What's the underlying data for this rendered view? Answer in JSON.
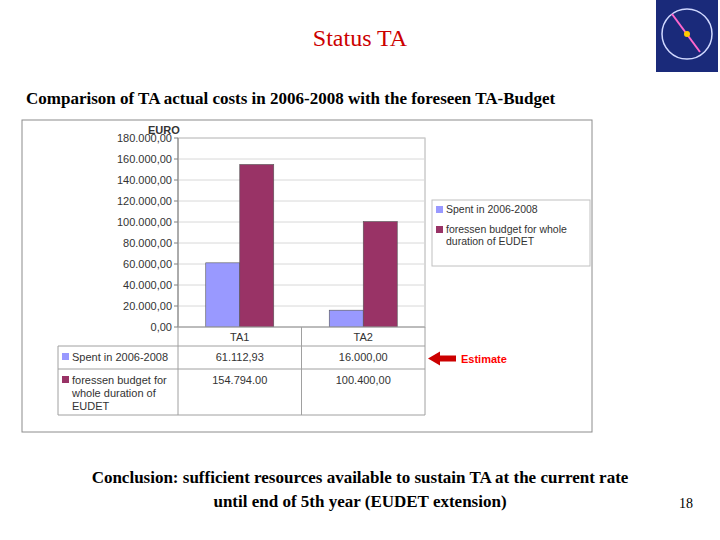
{
  "slide": {
    "title": "Status TA",
    "subtitle": "Comparison of TA actual costs in 2006-2008 with the foreseen TA-Budget",
    "conclusion": [
      "Conclusion: sufficient resources available to sustain TA at the current rate",
      "until end of 5th year (EUDET extension)"
    ],
    "page_number": 18
  },
  "chart_data": {
    "type": "bar",
    "y_label": "EURO",
    "annotations": [
      "Estimate"
    ],
    "categories": [
      "TA1",
      "TA2"
    ],
    "series": [
      {
        "name": "Spent in 2006-2008",
        "color": "#9999ff",
        "values": [
          61112.93,
          16000
        ],
        "value_labels": [
          "61.112,93",
          "16.000,00"
        ]
      },
      {
        "name": "foressen budget for whole duration of EUDET",
        "color": "#993366",
        "values": [
          154794,
          100400
        ],
        "value_labels": [
          "154.794.00",
          "100.400,00"
        ]
      }
    ],
    "ylim": [
      0,
      180000
    ],
    "yticks": [
      {
        "value": 0,
        "label": "0,00"
      },
      {
        "value": 20000,
        "label": "20.000,00"
      },
      {
        "value": 40000,
        "label": "40.000,00"
      },
      {
        "value": 60000,
        "label": "60.000,00"
      },
      {
        "value": 80000,
        "label": "80.000,00"
      },
      {
        "value": 100000,
        "label": "100.000,00"
      },
      {
        "value": 120000,
        "label": "120.000,00"
      },
      {
        "value": 140000,
        "label": "140.000,00"
      },
      {
        "value": 160000,
        "label": "160.000,00"
      },
      {
        "value": 180000,
        "label": "180.000,00"
      }
    ],
    "grid": true,
    "legend": "right"
  }
}
